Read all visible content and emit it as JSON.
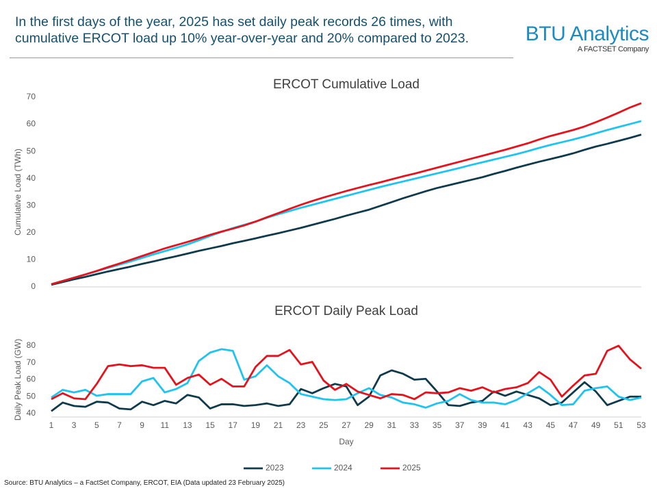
{
  "header": {
    "title": "In the first days of the year, 2025 has set daily peak records 26 times, with cumulative ERCOT load up 10% year-over-year and 20% compared to 2023.",
    "logo": "BTU Analytics",
    "logo_tagline": "A FACTSET Company"
  },
  "source": "Source: BTU Analytics – a FactSet Company, ERCOT, EIA (Data updated 23 February 2025)",
  "chart_data": [
    {
      "type": "line",
      "title": "ERCOT Cumulative Load",
      "y_label": "Cumulative Load (TWh)",
      "x": [
        1,
        2,
        3,
        4,
        5,
        6,
        7,
        8,
        9,
        10,
        11,
        12,
        13,
        14,
        15,
        16,
        17,
        18,
        19,
        20,
        21,
        22,
        23,
        24,
        25,
        26,
        27,
        28,
        29,
        30,
        31,
        32,
        33,
        34,
        35,
        36,
        37,
        38,
        39,
        40,
        41,
        42,
        43,
        44,
        45,
        46,
        47,
        48,
        49,
        50,
        51,
        52,
        53
      ],
      "xlim": [
        1,
        53
      ],
      "ylim": [
        0,
        70
      ],
      "yticks": [
        0,
        10,
        20,
        30,
        40,
        50,
        60,
        70
      ],
      "series": [
        {
          "color": "#0e3a4c",
          "values": [
            0.8,
            1.8,
            2.8,
            3.7,
            4.7,
            5.7,
            6.6,
            7.5,
            8.5,
            9.4,
            10.4,
            11.3,
            12.3,
            13.3,
            14.2,
            15.1,
            16.1,
            17.0,
            17.9,
            18.9,
            19.8,
            20.8,
            21.8,
            22.9,
            24.0,
            25.1,
            26.3,
            27.4,
            28.5,
            29.9,
            31.3,
            32.7,
            34.0,
            35.3,
            36.5,
            37.5,
            38.5,
            39.5,
            40.5,
            41.7,
            42.8,
            44.0,
            45.1,
            46.2,
            47.2,
            48.2,
            49.3,
            50.6,
            51.8,
            52.8,
            53.9,
            55.0,
            56.2
          ]
        },
        {
          "color": "#1ec3ef",
          "values": [
            1.0,
            2.2,
            3.4,
            4.6,
            5.8,
            7.0,
            8.2,
            9.4,
            10.7,
            12.0,
            13.2,
            14.4,
            15.7,
            17.2,
            18.8,
            20.3,
            21.7,
            22.9,
            24.1,
            25.5,
            26.8,
            28.0,
            29.2,
            30.3,
            31.4,
            32.5,
            33.6,
            34.7,
            35.8,
            36.9,
            37.9,
            38.9,
            39.9,
            40.9,
            41.9,
            42.9,
            43.9,
            45.0,
            46.0,
            47.0,
            48.0,
            49.0,
            50.1,
            51.3,
            52.4,
            53.4,
            54.4,
            55.5,
            56.7,
            57.9,
            59.0,
            60.1,
            61.2
          ]
        },
        {
          "color": "#e5121b",
          "values": [
            1.0,
            2.2,
            3.4,
            4.6,
            5.9,
            7.3,
            8.6,
            10.0,
            11.4,
            12.8,
            14.2,
            15.4,
            16.6,
            17.9,
            19.2,
            20.4,
            21.5,
            22.7,
            24.1,
            25.7,
            27.2,
            28.8,
            30.3,
            31.7,
            33.0,
            34.2,
            35.4,
            36.5,
            37.6,
            38.6,
            39.7,
            40.8,
            41.8,
            42.9,
            44.0,
            45.1,
            46.2,
            47.3,
            48.4,
            49.5,
            50.6,
            51.8,
            53.0,
            54.4,
            55.7,
            56.8,
            57.9,
            59.2,
            60.8,
            62.5,
            64.3,
            66.2,
            67.8
          ]
        }
      ]
    },
    {
      "type": "line",
      "title": "ERCOT Daily Peak Load",
      "y_label": "Daily Peak Load (GW)",
      "x_label": "Day",
      "x": [
        1,
        2,
        3,
        4,
        5,
        6,
        7,
        8,
        9,
        10,
        11,
        12,
        13,
        14,
        15,
        16,
        17,
        18,
        19,
        20,
        21,
        22,
        23,
        24,
        25,
        26,
        27,
        28,
        29,
        30,
        31,
        32,
        33,
        34,
        35,
        36,
        37,
        38,
        39,
        40,
        41,
        42,
        43,
        44,
        45,
        46,
        47,
        48,
        49,
        50,
        51,
        52,
        53
      ],
      "xlim": [
        1,
        53
      ],
      "xticks": [
        1,
        3,
        5,
        7,
        9,
        11,
        13,
        15,
        17,
        19,
        21,
        23,
        25,
        27,
        29,
        31,
        33,
        35,
        37,
        39,
        41,
        43,
        45,
        47,
        49,
        51,
        53
      ],
      "ylim": [
        38,
        82
      ],
      "yticks": [
        40,
        50,
        60,
        70,
        80
      ],
      "legend": "bottom",
      "series": [
        {
          "name": "2023",
          "color": "#0e3a4c",
          "values": [
            41.5,
            46.5,
            44.5,
            44,
            47,
            46.5,
            43,
            42.5,
            47,
            45,
            47.5,
            46,
            51,
            49.5,
            43,
            45.5,
            45.5,
            44.5,
            45,
            46,
            44.5,
            45.5,
            54.5,
            52,
            55,
            57.5,
            56,
            45,
            50,
            62.5,
            65.5,
            63.5,
            60,
            60.5,
            53,
            45,
            44.5,
            46.5,
            47.5,
            53,
            50.5,
            53,
            51,
            49,
            45,
            46.5,
            52.5,
            58.5,
            53,
            45,
            47.5,
            50,
            50
          ]
        },
        {
          "name": "2024",
          "color": "#1ec3ef",
          "values": [
            49.5,
            54,
            52.5,
            54,
            50.5,
            51.5,
            51.5,
            51.5,
            59,
            61,
            52.5,
            54.5,
            58,
            71,
            76,
            78,
            77,
            60,
            62,
            68.5,
            62,
            58,
            51.5,
            50,
            48.5,
            48,
            48.5,
            52,
            55,
            51,
            49.5,
            46.5,
            45.5,
            43.5,
            46,
            47.5,
            51.5,
            48,
            46.5,
            46.5,
            45.5,
            48,
            52,
            56,
            51,
            45,
            45.5,
            53.5,
            55,
            56,
            50,
            48,
            49.5
          ]
        },
        {
          "name": "2025",
          "color": "#e5121b",
          "values": [
            48.5,
            52,
            49,
            48.5,
            57.5,
            68,
            69,
            68,
            68.5,
            67,
            67,
            57,
            61,
            63,
            57,
            60.5,
            56,
            56,
            67.5,
            74,
            74,
            77.5,
            69,
            70.5,
            59.5,
            54,
            57.5,
            53,
            51,
            49,
            51.5,
            51,
            48.5,
            52.5,
            52,
            52.5,
            55,
            53.5,
            55.5,
            52.5,
            54.5,
            55.5,
            58,
            64.5,
            60,
            50,
            56.5,
            62.5,
            63.5,
            77,
            80,
            72,
            66.5
          ]
        }
      ]
    }
  ]
}
